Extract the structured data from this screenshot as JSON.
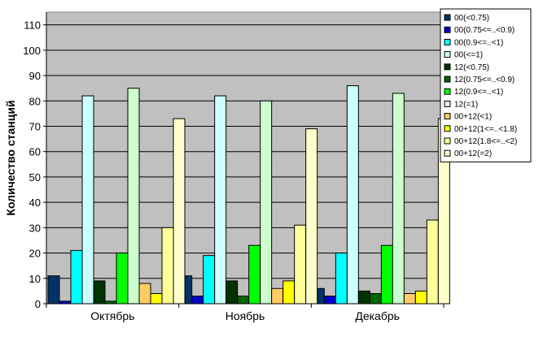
{
  "chart_data": {
    "type": "bar",
    "ylabel": "Количество станций",
    "xlabel": "",
    "ylim": [
      0,
      115
    ],
    "yticks": [
      0,
      10,
      20,
      30,
      40,
      50,
      60,
      70,
      80,
      90,
      100,
      110
    ],
    "grid": true,
    "legend_position": "top-right",
    "categories": [
      "Октябрь",
      "Ноябрь",
      "Декабрь"
    ],
    "series": [
      {
        "name": "00(<0.75)",
        "color": "#003366",
        "values": [
          11,
          11,
          6
        ]
      },
      {
        "name": "00(0.75<=..<0.9)",
        "color": "#0000cc",
        "values": [
          1,
          3,
          3
        ]
      },
      {
        "name": "00(0.9<=..<1)",
        "color": "#00ffff",
        "values": [
          21,
          19,
          20
        ]
      },
      {
        "name": "00(<=1)",
        "color": "#ccffff",
        "values": [
          82,
          82,
          86
        ]
      },
      {
        "name": "12(<0.75)",
        "color": "#003300",
        "values": [
          9,
          9,
          5
        ]
      },
      {
        "name": "12(0.75<=..<0.9)",
        "color": "#006600",
        "values": [
          1,
          3,
          4
        ]
      },
      {
        "name": "12(0.9<=..<1)",
        "color": "#00ff00",
        "values": [
          20,
          23,
          23
        ]
      },
      {
        "name": "12(=1)",
        "color": "#ccffcc",
        "values": [
          85,
          80,
          83
        ]
      },
      {
        "name": "00+12(<1)",
        "color": "#ffcc66",
        "values": [
          8,
          6,
          4
        ]
      },
      {
        "name": "00+12(1<=..<1.8)",
        "color": "#ffff00",
        "values": [
          4,
          9,
          5
        ]
      },
      {
        "name": "00+12(1.8<=..<2)",
        "color": "#ffff99",
        "values": [
          30,
          31,
          33
        ]
      },
      {
        "name": "00+12(=2)",
        "color": "#ffffcc",
        "values": [
          73,
          69,
          73
        ]
      }
    ]
  }
}
